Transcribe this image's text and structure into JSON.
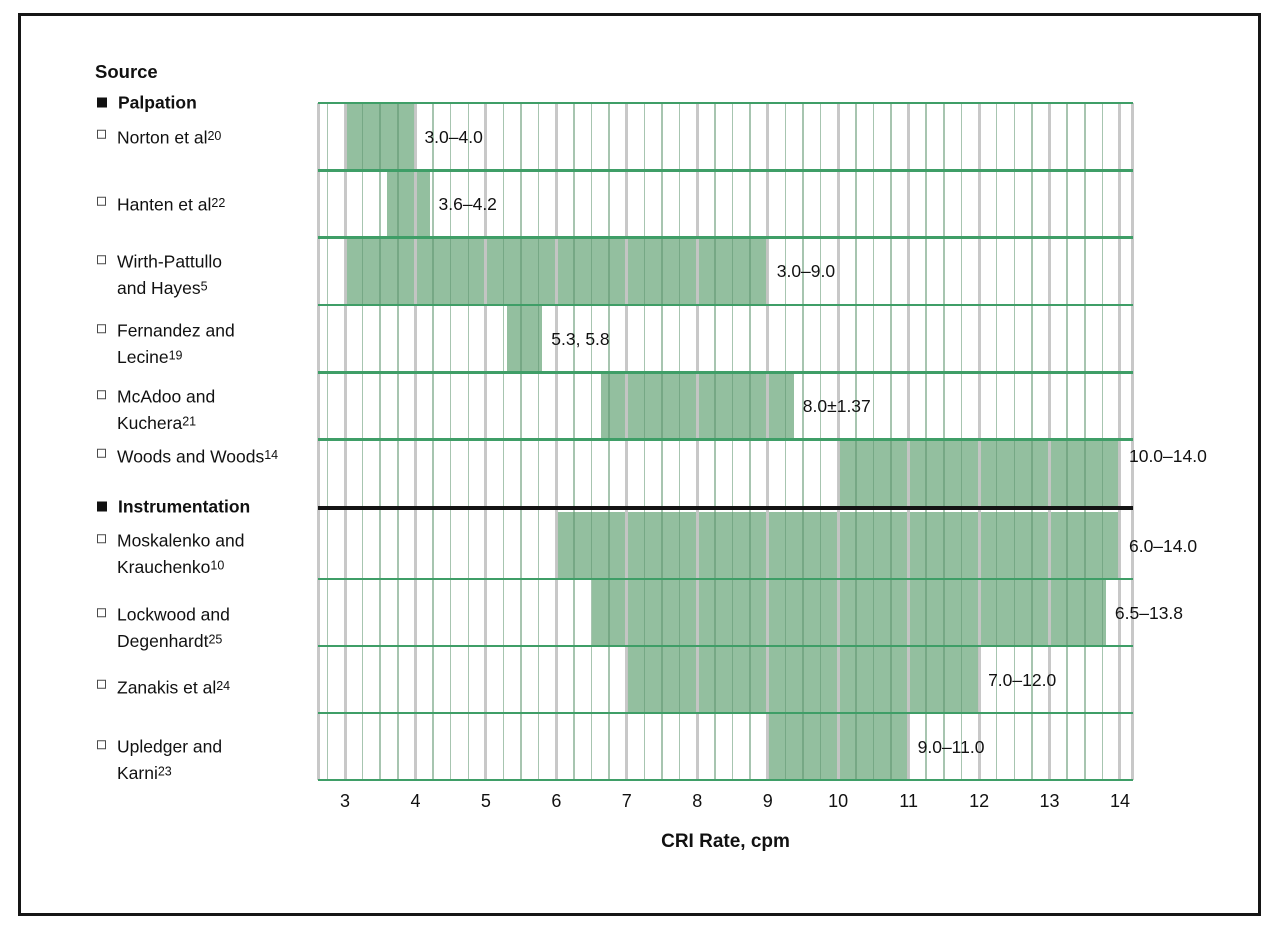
{
  "chart_data": {
    "type": "range_bar",
    "orientation": "horizontal",
    "legend_title": "Source",
    "xlabel": "CRI Rate, cpm",
    "xlim": [
      3,
      14
    ],
    "x_ticks": [
      "3",
      "4",
      "5",
      "6",
      "7",
      "8",
      "9",
      "10",
      "11",
      "12",
      "13",
      "14"
    ],
    "minor_grid_step": 0.25,
    "grid": true,
    "colors": {
      "bar_fill": "#93bf9f",
      "band_line_green": "#3f9e67",
      "major_grid_gray": "#c5c5c5",
      "minor_grid_green": "#5f9670",
      "divider_black": "#141414",
      "frame_black": "#161616"
    },
    "groups": [
      {
        "label": "Palpation",
        "items": [
          {
            "source_lines": [
              "Norton et al"
            ],
            "ref": "20",
            "start": 3.0,
            "end": 4.0,
            "value_label": "3.0–4.0"
          },
          {
            "source_lines": [
              "Hanten et al"
            ],
            "ref": "22",
            "start": 3.6,
            "end": 4.2,
            "value_label": "3.6–4.2"
          },
          {
            "source_lines": [
              "Wirth-Pattullo",
              "and Hayes"
            ],
            "ref": "5",
            "start": 3.0,
            "end": 9.0,
            "value_label": "3.0–9.0"
          },
          {
            "source_lines": [
              "Fernandez and",
              "Lecine"
            ],
            "ref": "19",
            "start": 5.3,
            "end": 5.8,
            "value_label": "5.3, 5.8"
          },
          {
            "source_lines": [
              "McAdoo and",
              "Kuchera"
            ],
            "ref": "21",
            "start": 6.63,
            "end": 9.37,
            "value_label": "8.0±1.37"
          },
          {
            "source_lines": [
              "Woods and Woods"
            ],
            "ref": "14",
            "start": 10.0,
            "end": 14.0,
            "value_label": "10.0–14.0"
          }
        ]
      },
      {
        "label": "Instrumentation",
        "items": [
          {
            "source_lines": [
              "Moskalenko and",
              "Krauchenko"
            ],
            "ref": "10",
            "start": 6.0,
            "end": 14.0,
            "value_label": "6.0–14.0"
          },
          {
            "source_lines": [
              "Lockwood and",
              "Degenhardt"
            ],
            "ref": "25",
            "start": 6.5,
            "end": 13.8,
            "value_label": "6.5–13.8"
          },
          {
            "source_lines": [
              "Zanakis et al"
            ],
            "ref": "24",
            "start": 7.0,
            "end": 12.0,
            "value_label": "7.0–12.0"
          },
          {
            "source_lines": [
              "Upledger and",
              "Karni"
            ],
            "ref": "23",
            "start": 9.0,
            "end": 11.0,
            "value_label": "9.0–11.0"
          }
        ]
      }
    ]
  }
}
